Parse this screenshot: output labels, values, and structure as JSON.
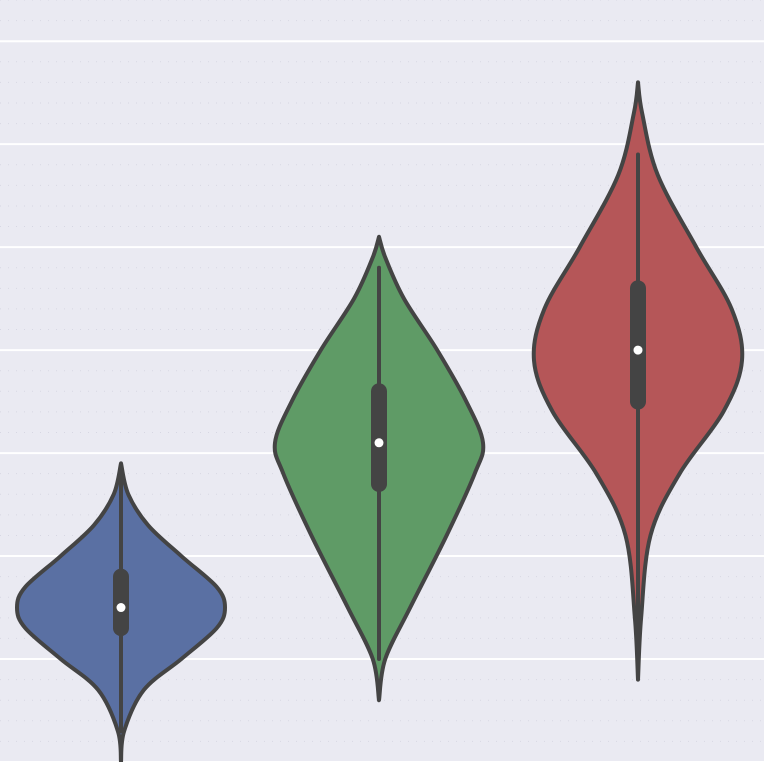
{
  "chart_data": {
    "type": "violin",
    "grid": true,
    "ylim": [
      0.0,
      7.4
    ],
    "violin_colors": [
      "#5a70a3",
      "#5f9b66",
      "#b55658"
    ],
    "series": [
      {
        "min": 0.3,
        "q1": 1.3,
        "median": 1.5,
        "q3": 1.8,
        "max": 2.8,
        "shape": [
          [
            0.0,
            0.0
          ],
          [
            0.3,
            0.03
          ],
          [
            0.7,
            0.22
          ],
          [
            1.0,
            0.58
          ],
          [
            1.3,
            0.92
          ],
          [
            1.5,
            1.0
          ],
          [
            1.7,
            0.92
          ],
          [
            2.0,
            0.58
          ],
          [
            2.3,
            0.26
          ],
          [
            2.6,
            0.07
          ],
          [
            2.9,
            0.0
          ]
        ]
      },
      {
        "min": 1.0,
        "q1": 2.7,
        "median": 3.1,
        "q3": 3.6,
        "max": 4.8,
        "shape": [
          [
            0.6,
            0.0
          ],
          [
            1.0,
            0.06
          ],
          [
            1.5,
            0.3
          ],
          [
            2.2,
            0.65
          ],
          [
            2.8,
            0.92
          ],
          [
            3.1,
            1.0
          ],
          [
            3.5,
            0.84
          ],
          [
            4.0,
            0.56
          ],
          [
            4.5,
            0.24
          ],
          [
            4.9,
            0.06
          ],
          [
            5.1,
            0.0
          ]
        ]
      },
      {
        "min": 0.9,
        "q1": 3.5,
        "median": 4.0,
        "q3": 4.6,
        "max": 5.9,
        "shape": [
          [
            0.8,
            0.0
          ],
          [
            1.4,
            0.03
          ],
          [
            2.2,
            0.12
          ],
          [
            2.8,
            0.4
          ],
          [
            3.4,
            0.82
          ],
          [
            3.9,
            1.0
          ],
          [
            4.4,
            0.9
          ],
          [
            5.0,
            0.56
          ],
          [
            5.7,
            0.19
          ],
          [
            6.3,
            0.04
          ],
          [
            6.6,
            0.0
          ]
        ]
      }
    ]
  }
}
